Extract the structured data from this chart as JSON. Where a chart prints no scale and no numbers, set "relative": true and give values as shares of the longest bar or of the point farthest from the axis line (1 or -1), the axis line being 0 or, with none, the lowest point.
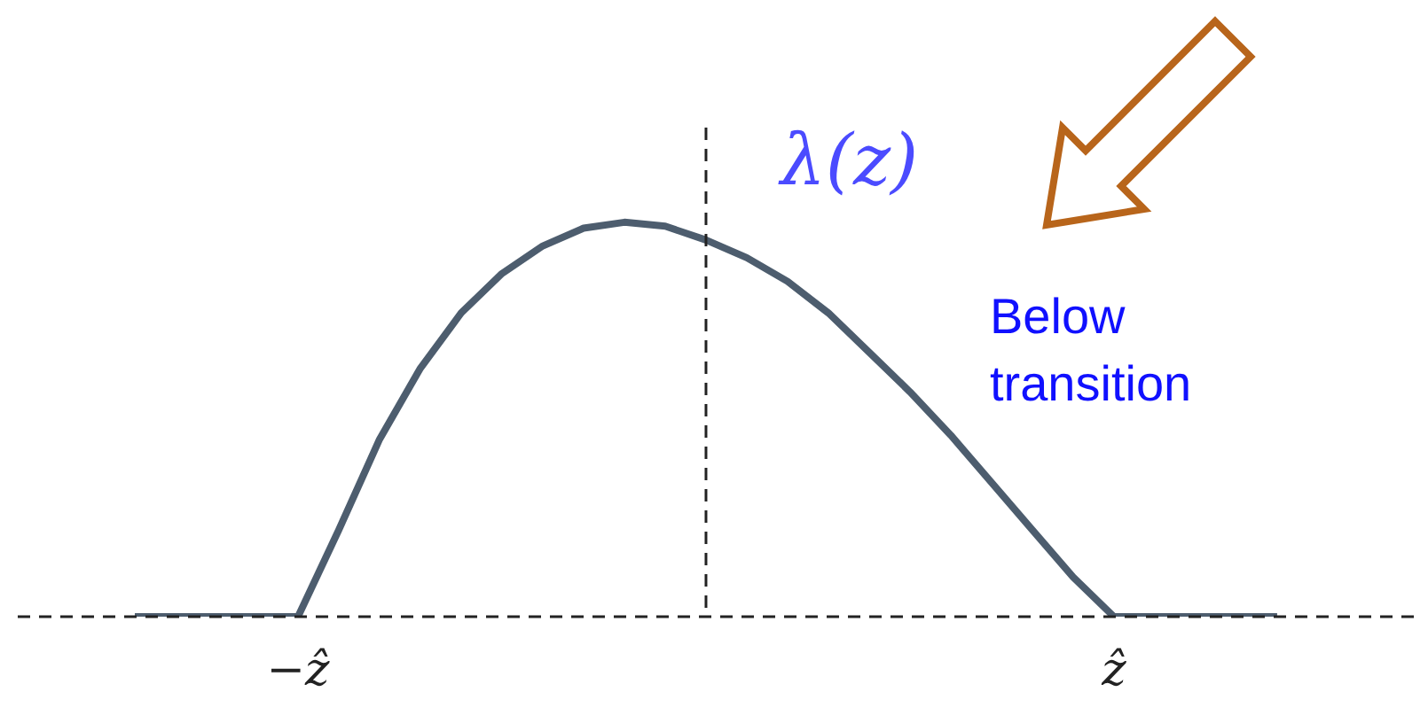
{
  "chart_data": {
    "type": "line",
    "relative": true,
    "ylabel": "λ(z)",
    "categories": [
      null,
      null,
      null,
      null,
      "−ẑ",
      null,
      null,
      null,
      null,
      null,
      null,
      null,
      null,
      null,
      null,
      null,
      null,
      null,
      null,
      null,
      null,
      null,
      null,
      null,
      "ẑ",
      null,
      null,
      null,
      null
    ],
    "series": [
      {
        "color": "#4d5d6e",
        "values": [
          0,
          0,
          0,
          0,
          0,
          0.22,
          0.45,
          0.63,
          0.77,
          0.87,
          0.94,
          0.985,
          1,
          0.99,
          0.955,
          0.91,
          0.85,
          0.77,
          0.67,
          0.57,
          0.46,
          0.34,
          0.22,
          0.1,
          0,
          0,
          0,
          0,
          0
        ]
      }
    ],
    "annotations": [
      "Below transition"
    ],
    "marker": "none",
    "line_style": "solid"
  }
}
